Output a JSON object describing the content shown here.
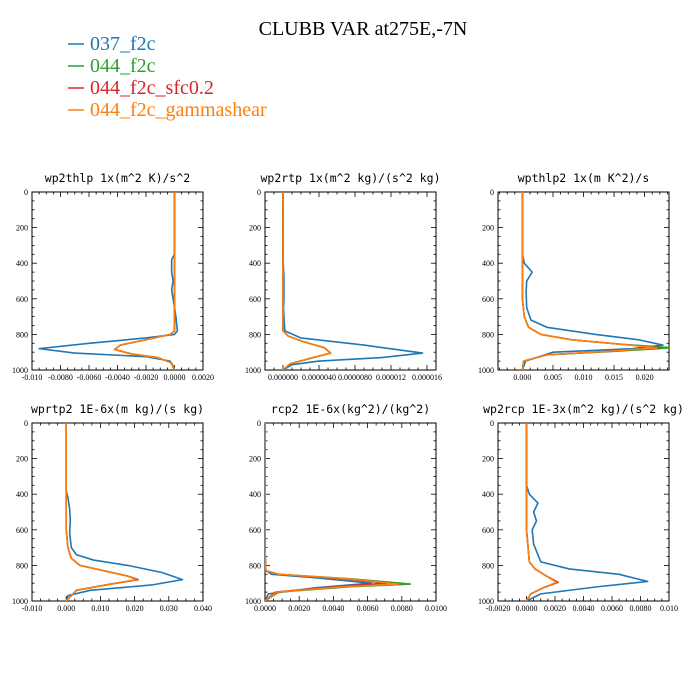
{
  "figure": {
    "title": "CLUBB VAR at275E,-7N",
    "colors": {
      "037_f2c": "#1f77b4",
      "044_f2c": "#2ca02c",
      "044_f2c_sfc0.2": "#d62728",
      "044_f2c_gammashear": "#ff7f0e"
    },
    "legend": [
      {
        "label": "037_f2c",
        "color": "#1f77b4"
      },
      {
        "label": "044_f2c",
        "color": "#2ca02c"
      },
      {
        "label": "044_f2c_sfc0.2",
        "color": "#d62728"
      },
      {
        "label": "044_f2c_gammashear",
        "color": "#ff7f0e"
      }
    ]
  },
  "chart_data": [
    {
      "type": "line",
      "title": "wp2thlp  1x(m^2 K)/s^2",
      "xlim": [
        -0.01,
        0.002
      ],
      "ylim": [
        1000,
        0
      ],
      "yticks": [
        0,
        200,
        400,
        600,
        800,
        1000
      ],
      "xticks": [
        -0.01,
        -0.008,
        -0.006,
        -0.004,
        -0.002,
        0.0,
        0.002
      ],
      "xtick_labels": [
        "-0.010",
        "-0.0080",
        "-0.0060",
        "-0.0040",
        "-0.0020",
        "0.0000",
        "0.0020"
      ],
      "series": [
        {
          "name": "037_f2c",
          "x": [
            0.0,
            0.0,
            0.0,
            0.0,
            -0.0002,
            -0.0002,
            -0.0001,
            -0.0002,
            -0.0001,
            0.0,
            0.0001,
            0.0002,
            0.0,
            -0.002,
            -0.006,
            -0.0095,
            -0.007,
            -0.002,
            -0.0003,
            0.0
          ],
          "y": [
            0,
            100,
            200,
            350,
            380,
            450,
            500,
            550,
            600,
            650,
            700,
            780,
            800,
            820,
            850,
            880,
            905,
            925,
            950,
            1000
          ]
        },
        {
          "name": "044_f2c",
          "x": [
            0.0,
            0.0,
            0.0,
            0.0,
            0.0,
            -0.0003,
            -0.002,
            -0.0038,
            -0.0042,
            -0.003,
            -0.0012,
            -0.0002,
            0.0
          ],
          "y": [
            0,
            200,
            400,
            600,
            780,
            800,
            830,
            860,
            885,
            910,
            930,
            960,
            1000
          ]
        },
        {
          "name": "044_f2c_sfc0.2",
          "x": [
            0.0,
            0.0,
            0.0,
            0.0,
            0.0,
            -0.0003,
            -0.002,
            -0.0038,
            -0.0042,
            -0.003,
            -0.0012,
            -0.0002,
            0.0
          ],
          "y": [
            0,
            200,
            400,
            600,
            780,
            800,
            830,
            860,
            885,
            910,
            930,
            960,
            1000
          ]
        },
        {
          "name": "044_f2c_gammashear",
          "x": [
            0.0,
            0.0,
            0.0,
            0.0,
            0.0,
            -0.0003,
            -0.002,
            -0.0038,
            -0.0042,
            -0.003,
            -0.0012,
            -0.0002,
            0.0
          ],
          "y": [
            0,
            200,
            400,
            600,
            780,
            800,
            830,
            860,
            885,
            910,
            930,
            960,
            1000
          ]
        }
      ]
    },
    {
      "type": "line",
      "title": "wp2rtp  1x(m^2 kg)/(s^2 kg)",
      "xlim": [
        -2e-06,
        1.7e-05
      ],
      "ylim": [
        1000,
        0
      ],
      "yticks": [
        0,
        200,
        400,
        600,
        800,
        1000
      ],
      "xticks": [
        0.0,
        4e-06,
        8e-06,
        1.2e-05,
        1.6e-05
      ],
      "xtick_labels": [
        "0.000000",
        "0.0000040",
        "0.0000080",
        "0.000012",
        "0.000016"
      ],
      "series": [
        {
          "name": "037_f2c",
          "x": [
            0.0,
            0.0,
            0.0,
            0.0,
            5e-08,
            1e-07,
            1e-07,
            1e-07,
            5e-08,
            1e-07,
            2e-07,
            2e-06,
            9e-06,
            1.55e-05,
            1.1e-05,
            4e-06,
            1e-06,
            0.0
          ],
          "y": [
            0,
            100,
            200,
            380,
            420,
            480,
            550,
            600,
            650,
            700,
            780,
            820,
            860,
            905,
            930,
            950,
            970,
            1000
          ]
        },
        {
          "name": "044_f2c",
          "x": [
            0.0,
            0.0,
            0.0,
            0.0,
            0.0,
            6e-07,
            2.2e-06,
            4.6e-06,
            5.3e-06,
            3e-06,
            8e-07,
            0.0
          ],
          "y": [
            0,
            200,
            400,
            600,
            780,
            810,
            840,
            875,
            905,
            935,
            965,
            1000
          ]
        },
        {
          "name": "044_f2c_sfc0.2",
          "x": [
            0.0,
            0.0,
            0.0,
            0.0,
            0.0,
            6e-07,
            2.2e-06,
            4.6e-06,
            5.3e-06,
            3e-06,
            8e-07,
            0.0
          ],
          "y": [
            0,
            200,
            400,
            600,
            780,
            810,
            840,
            875,
            905,
            935,
            965,
            1000
          ]
        },
        {
          "name": "044_f2c_gammashear",
          "x": [
            0.0,
            0.0,
            0.0,
            0.0,
            0.0,
            6e-07,
            2.2e-06,
            4.6e-06,
            5.3e-06,
            3e-06,
            8e-07,
            0.0
          ],
          "y": [
            0,
            200,
            400,
            600,
            780,
            810,
            840,
            875,
            905,
            935,
            965,
            1000
          ]
        }
      ]
    },
    {
      "type": "line",
      "title": "wpthlp2  1x(m K^2)/s",
      "xlim": [
        -0.004,
        0.024
      ],
      "ylim": [
        1000,
        0
      ],
      "yticks": [
        0,
        200,
        400,
        600,
        800,
        1000
      ],
      "xticks": [
        0.0,
        0.005,
        0.01,
        0.015,
        0.02
      ],
      "xtick_labels": [
        "0.000",
        "0.005",
        "0.010",
        "0.015",
        "0.020"
      ],
      "series": [
        {
          "name": "037_f2c",
          "x": [
            0.0,
            0.0,
            0.0,
            0.0003,
            0.0016,
            0.0007,
            0.0006,
            0.0007,
            0.0014,
            0.004,
            0.012,
            0.019,
            0.023,
            0.018,
            0.005,
            0.0005,
            0.0
          ],
          "y": [
            0,
            200,
            350,
            400,
            450,
            500,
            560,
            650,
            720,
            760,
            800,
            830,
            860,
            880,
            900,
            950,
            1000
          ]
        },
        {
          "name": "044_f2c",
          "x": [
            0.0,
            0.0,
            0.0,
            0.0003,
            0.001,
            0.003,
            0.008,
            0.016,
            0.0245,
            0.015,
            0.004,
            0.0002,
            0.0
          ],
          "y": [
            0,
            300,
            600,
            700,
            760,
            800,
            830,
            855,
            875,
            895,
            915,
            950,
            1000
          ]
        },
        {
          "name": "044_f2c_sfc0.2",
          "x": [
            0.0,
            0.0,
            0.0,
            0.0003,
            0.001,
            0.003,
            0.008,
            0.016,
            0.0225,
            0.014,
            0.004,
            0.0002,
            0.0
          ],
          "y": [
            0,
            300,
            600,
            700,
            760,
            800,
            830,
            855,
            875,
            895,
            915,
            950,
            1000
          ]
        },
        {
          "name": "044_f2c_gammashear",
          "x": [
            0.0,
            0.0,
            0.0,
            0.0003,
            0.001,
            0.003,
            0.008,
            0.016,
            0.022,
            0.014,
            0.004,
            0.0002,
            0.0
          ],
          "y": [
            0,
            300,
            600,
            700,
            760,
            800,
            830,
            855,
            875,
            895,
            915,
            950,
            1000
          ]
        }
      ]
    },
    {
      "type": "line",
      "title": "wprtp2  1E-6x(m kg)/(s kg)",
      "xlim": [
        -0.01,
        0.04
      ],
      "ylim": [
        1000,
        0
      ],
      "yticks": [
        0,
        200,
        400,
        600,
        800,
        1000
      ],
      "xticks": [
        -0.01,
        0.0,
        0.01,
        0.02,
        0.03,
        0.04
      ],
      "xtick_labels": [
        "-0.010",
        "0.000",
        "0.010",
        "0.020",
        "0.030",
        "0.040"
      ],
      "series": [
        {
          "name": "037_f2c",
          "x": [
            0.0,
            0.0,
            0.0,
            0.0005,
            0.001,
            0.0012,
            0.001,
            0.0015,
            0.003,
            0.008,
            0.018,
            0.028,
            0.034,
            0.025,
            0.007,
            0.0005,
            0.0
          ],
          "y": [
            0,
            200,
            380,
            420,
            480,
            550,
            620,
            700,
            740,
            770,
            800,
            840,
            880,
            910,
            940,
            970,
            1000
          ]
        },
        {
          "name": "044_f2c",
          "x": [
            0.0,
            0.0,
            0.0,
            0.0005,
            0.0015,
            0.004,
            0.011,
            0.018,
            0.021,
            0.013,
            0.003,
            0.0
          ],
          "y": [
            0,
            300,
            600,
            700,
            760,
            800,
            830,
            860,
            880,
            905,
            940,
            1000
          ]
        },
        {
          "name": "044_f2c_sfc0.2",
          "x": [
            0.0,
            0.0,
            0.0,
            0.0005,
            0.0015,
            0.004,
            0.011,
            0.018,
            0.021,
            0.013,
            0.003,
            0.0
          ],
          "y": [
            0,
            300,
            600,
            700,
            760,
            800,
            830,
            860,
            880,
            905,
            940,
            1000
          ]
        },
        {
          "name": "044_f2c_gammashear",
          "x": [
            0.0,
            0.0,
            0.0,
            0.0005,
            0.0015,
            0.004,
            0.011,
            0.018,
            0.0205,
            0.013,
            0.003,
            0.0
          ],
          "y": [
            0,
            300,
            600,
            700,
            760,
            800,
            830,
            860,
            880,
            905,
            940,
            1000
          ]
        }
      ]
    },
    {
      "type": "line",
      "title": "rcp2  1E-6x(kg^2)/(kg^2)",
      "xlim": [
        0.0,
        0.01
      ],
      "ylim": [
        1000,
        0
      ],
      "yticks": [
        0,
        200,
        400,
        600,
        800,
        1000
      ],
      "xticks": [
        0.0,
        0.002,
        0.004,
        0.006,
        0.008,
        0.01
      ],
      "xtick_labels": [
        "0.0000",
        "0.0020",
        "0.0040",
        "0.0060",
        "0.0080",
        "0.0100"
      ],
      "series": [
        {
          "name": "037_f2c",
          "x": [
            0.0,
            0.0,
            0.0,
            2e-05,
            5e-05,
            0.0004,
            0.003,
            0.0062,
            0.003,
            0.0002,
            0.0
          ],
          "y": [
            0,
            400,
            700,
            800,
            830,
            850,
            870,
            900,
            925,
            960,
            1000
          ]
        },
        {
          "name": "044_f2c",
          "x": [
            0.0,
            0.0,
            0.0,
            5e-05,
            0.0008,
            0.005,
            0.0085,
            0.005,
            0.0008,
            0.0
          ],
          "y": [
            0,
            400,
            700,
            830,
            850,
            875,
            905,
            920,
            950,
            1000
          ]
        },
        {
          "name": "044_f2c_sfc0.2",
          "x": [
            0.0,
            0.0,
            0.0,
            5e-05,
            0.0008,
            0.0045,
            0.0071,
            0.004,
            0.0006,
            0.0
          ],
          "y": [
            0,
            400,
            700,
            830,
            850,
            875,
            900,
            920,
            950,
            1000
          ]
        },
        {
          "name": "044_f2c_gammashear",
          "x": [
            0.0,
            0.0,
            0.0,
            5e-05,
            0.0008,
            0.0048,
            0.0078,
            0.0045,
            0.0007,
            0.0
          ],
          "y": [
            0,
            400,
            700,
            830,
            850,
            875,
            905,
            920,
            950,
            1000
          ]
        }
      ]
    },
    {
      "type": "line",
      "title": "wp2rcp  1E-3x(m^2 kg)/(s^2 kg)",
      "xlim": [
        -0.002,
        0.01
      ],
      "ylim": [
        1000,
        0
      ],
      "yticks": [
        0,
        200,
        400,
        600,
        800,
        1000
      ],
      "xticks": [
        -0.002,
        0.0,
        0.002,
        0.004,
        0.006,
        0.008,
        0.01
      ],
      "xtick_labels": [
        "-0.0020",
        "0.0000",
        "0.0020",
        "0.0040",
        "0.0060",
        "0.0080",
        "0.010"
      ],
      "series": [
        {
          "name": "037_f2c",
          "x": [
            0.0,
            0.0,
            0.0,
            0.0002,
            0.0008,
            0.0005,
            0.0007,
            0.0004,
            0.0005,
            0.001,
            0.003,
            0.0065,
            0.0085,
            0.005,
            0.001,
            0.0
          ],
          "y": [
            0,
            200,
            350,
            400,
            450,
            500,
            550,
            600,
            680,
            780,
            820,
            850,
            890,
            920,
            960,
            1000
          ]
        },
        {
          "name": "044_f2c",
          "x": [
            0.0,
            0.0,
            0.0,
            0.0002,
            0.0006,
            0.0014,
            0.0022,
            0.0012,
            0.0003,
            0.0
          ],
          "y": [
            0,
            300,
            600,
            780,
            820,
            860,
            895,
            925,
            960,
            1000
          ]
        },
        {
          "name": "044_f2c_sfc0.2",
          "x": [
            0.0,
            0.0,
            0.0,
            0.0002,
            0.0006,
            0.0014,
            0.0022,
            0.0012,
            0.0003,
            0.0
          ],
          "y": [
            0,
            300,
            600,
            780,
            820,
            860,
            895,
            925,
            960,
            1000
          ]
        },
        {
          "name": "044_f2c_gammashear",
          "x": [
            0.0,
            0.0,
            0.0,
            0.0002,
            0.0006,
            0.0014,
            0.0021,
            0.0012,
            0.0003,
            0.0
          ],
          "y": [
            0,
            300,
            600,
            780,
            820,
            860,
            895,
            925,
            960,
            1000
          ]
        }
      ]
    }
  ]
}
